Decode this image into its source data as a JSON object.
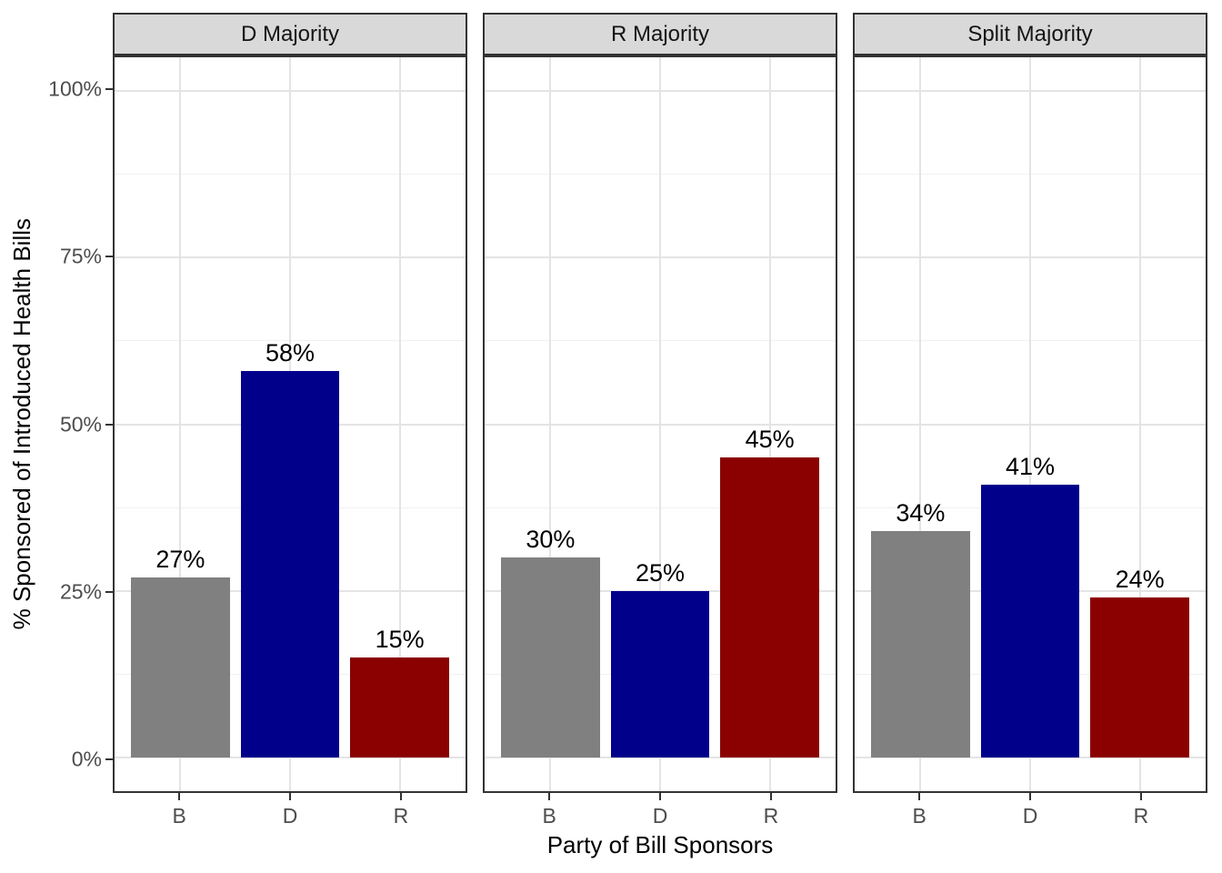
{
  "figure": {
    "y_axis_title": "% Sponsored of Introduced Health Bills",
    "x_axis_title": "Party of Bill Sponsors"
  },
  "chart_data": {
    "type": "bar",
    "faceting": "three column facets by chamber majority",
    "categories": [
      "B",
      "D",
      "R"
    ],
    "facets": [
      {
        "label": "D Majority",
        "values": [
          27,
          58,
          15
        ],
        "bar_labels": [
          "27%",
          "58%",
          "15%"
        ]
      },
      {
        "label": "R Majority",
        "values": [
          30,
          25,
          45
        ],
        "bar_labels": [
          "30%",
          "25%",
          "45%"
        ]
      },
      {
        "label": "Split Majority",
        "values": [
          34,
          41,
          24
        ],
        "bar_labels": [
          "34%",
          "41%",
          "24%"
        ]
      }
    ],
    "xlabel": "Party of Bill Sponsors",
    "ylabel": "% Sponsored of Introduced Health Bills",
    "y_ticks": [
      {
        "value": 0,
        "label": "0%"
      },
      {
        "value": 25,
        "label": "25%"
      },
      {
        "value": 50,
        "label": "50%"
      },
      {
        "value": 75,
        "label": "75%"
      },
      {
        "value": 100,
        "label": "100%"
      }
    ],
    "y_minor_ticks": [
      12.5,
      37.5,
      62.5,
      87.5
    ],
    "ylim": [
      -5,
      105
    ],
    "grid": "horizontal major+minor, vertical major at category centers",
    "legend_position": "none",
    "bar_colors": {
      "B": "#808080",
      "D": "#00008B",
      "R": "#8B0000"
    },
    "strip_background": "#D9D9D9",
    "panel_border_color": "#333333"
  }
}
